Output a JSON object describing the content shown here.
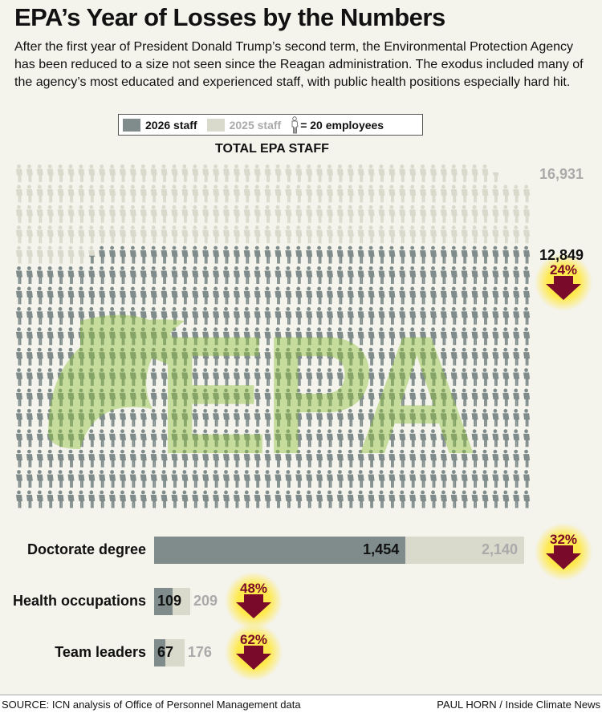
{
  "title": "EPA’s Year of Losses by the Numbers",
  "subtitle": "After the first year of President Donald Trump’s second term, the Environmental Protection Agency has been reduced to a size not seen since the Reagan administration. The exodus included many of the agency’s most educated and experienced staff, with public health positions especially hard hit.",
  "legend": {
    "staff_2026": "2026 staff",
    "staff_2025": "2025 staff",
    "icon_unit": "= 20 employees"
  },
  "colors": {
    "dark": "#7f8c8b",
    "light": "#d9d9cc",
    "arrow": "#7a0a2a",
    "glow": "#ffe94d",
    "watermark": "#8fc23f"
  },
  "chart_data": [
    {
      "type": "pictogram",
      "title": "TOTAL EPA STAFF",
      "unit_per_icon": 20,
      "series": [
        {
          "name": "2025 staff",
          "value": 16931,
          "label": "16,931"
        },
        {
          "name": "2026 staff",
          "value": 12849,
          "label": "12,849"
        }
      ],
      "change": "24%"
    },
    {
      "type": "bar",
      "categories": [
        "Doctorate degree",
        "Health occupations",
        "Team leaders"
      ],
      "series": [
        {
          "name": "2026 staff",
          "values": [
            1454,
            109,
            67
          ],
          "labels": [
            "1,454",
            "109",
            "67"
          ]
        },
        {
          "name": "2025 staff",
          "values": [
            2140,
            209,
            176
          ],
          "labels": [
            "2,140",
            "209",
            "176"
          ]
        }
      ],
      "changes": [
        "32%",
        "48%",
        "62%"
      ]
    }
  ],
  "footer": {
    "source": "SOURCE: ICN analysis of Office of Personnel Management data",
    "credit": "PAUL HORN / Inside Climate News"
  }
}
